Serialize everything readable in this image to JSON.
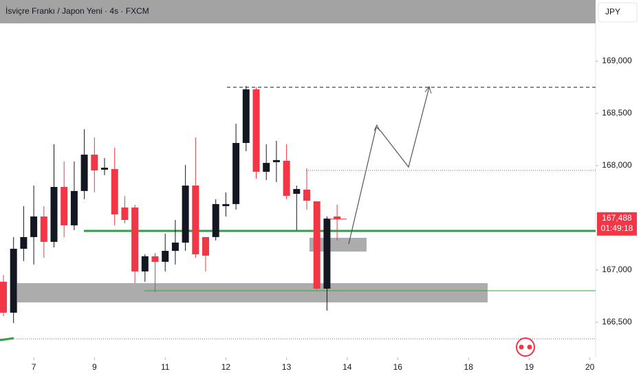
{
  "chart_data": {
    "type": "candlestick",
    "title": "İsviçre Frankı / Japon Yeni · 4s · FXCM",
    "currency": "JPY",
    "open": [
      166.888,
      166.592,
      167.204,
      167.316,
      167.513,
      167.27,
      167.796,
      167.428,
      167.757,
      168.105,
      167.961,
      167.967,
      167.599,
      167.599,
      166.987,
      167.132,
      167.079,
      167.184,
      167.263,
      167.809,
      167.316,
      167.316,
      167.612,
      167.632,
      168.217,
      168.73,
      167.941,
      168.033,
      168.046,
      167.73,
      167.77,
      167.658,
      166.822,
      167.513
    ],
    "high": [
      166.954,
      167.316,
      167.612,
      167.809,
      167.612,
      168.204,
      168.039,
      168.039,
      168.349,
      168.27,
      168.072,
      168.171,
      167.711,
      167.625,
      167.151,
      167.164,
      167.349,
      167.48,
      168.007,
      168.27,
      167.316,
      167.678,
      167.743,
      168.401,
      168.763,
      168.75,
      168.204,
      168.237,
      168.204,
      167.809,
      167.974,
      167.658,
      167.513,
      167.625
    ],
    "low": [
      166.559,
      166.493,
      167.086,
      167.053,
      167.118,
      167.217,
      167.316,
      167.382,
      167.678,
      167.743,
      167.908,
      167.428,
      167.447,
      166.875,
      166.888,
      166.789,
      166.987,
      167.053,
      167.184,
      167.118,
      166.987,
      167.283,
      167.513,
      167.579,
      168.138,
      167.875,
      167.862,
      167.842,
      167.678,
      167.382,
      167.579,
      166.809,
      166.612,
      167.283
    ],
    "close": [
      166.592,
      167.204,
      167.316,
      167.513,
      167.27,
      167.796,
      167.428,
      167.757,
      168.105,
      167.954,
      167.98,
      167.533,
      167.48,
      166.987,
      167.132,
      167.079,
      167.184,
      167.263,
      167.809,
      167.151,
      167.138,
      167.632,
      167.632,
      168.217,
      168.73,
      167.941,
      168.026,
      168.053,
      167.711,
      167.776,
      167.664,
      166.822,
      167.493,
      167.488
    ],
    "up_color": "#131722",
    "down_color": "#f23645",
    "xlim": [
      -0.34,
      58.57
    ],
    "xticks": [
      {
        "value": 3,
        "label": "7"
      },
      {
        "value": 9,
        "label": "9"
      },
      {
        "value": 16,
        "label": "11"
      },
      {
        "value": 22,
        "label": "12"
      },
      {
        "value": 28,
        "label": "13"
      },
      {
        "value": 34,
        "label": "14"
      },
      {
        "value": 39,
        "label": "16"
      },
      {
        "value": 46,
        "label": "18"
      },
      {
        "value": 52,
        "label": "19"
      },
      {
        "value": 58,
        "label": "20"
      }
    ],
    "ylim": [
      166.164,
      169.362
    ],
    "yticks": [
      {
        "value": 166.5,
        "label": "166,500"
      },
      {
        "value": 167,
        "label": "167,000"
      },
      {
        "value": 168,
        "label": "168,000"
      },
      {
        "value": 168.5,
        "label": "168,500"
      },
      {
        "value": 169,
        "label": "169,000"
      }
    ],
    "last_price": {
      "value": 167.488,
      "label": "167,488"
    },
    "countdown": "01:49:18",
    "grid": false
  }
}
